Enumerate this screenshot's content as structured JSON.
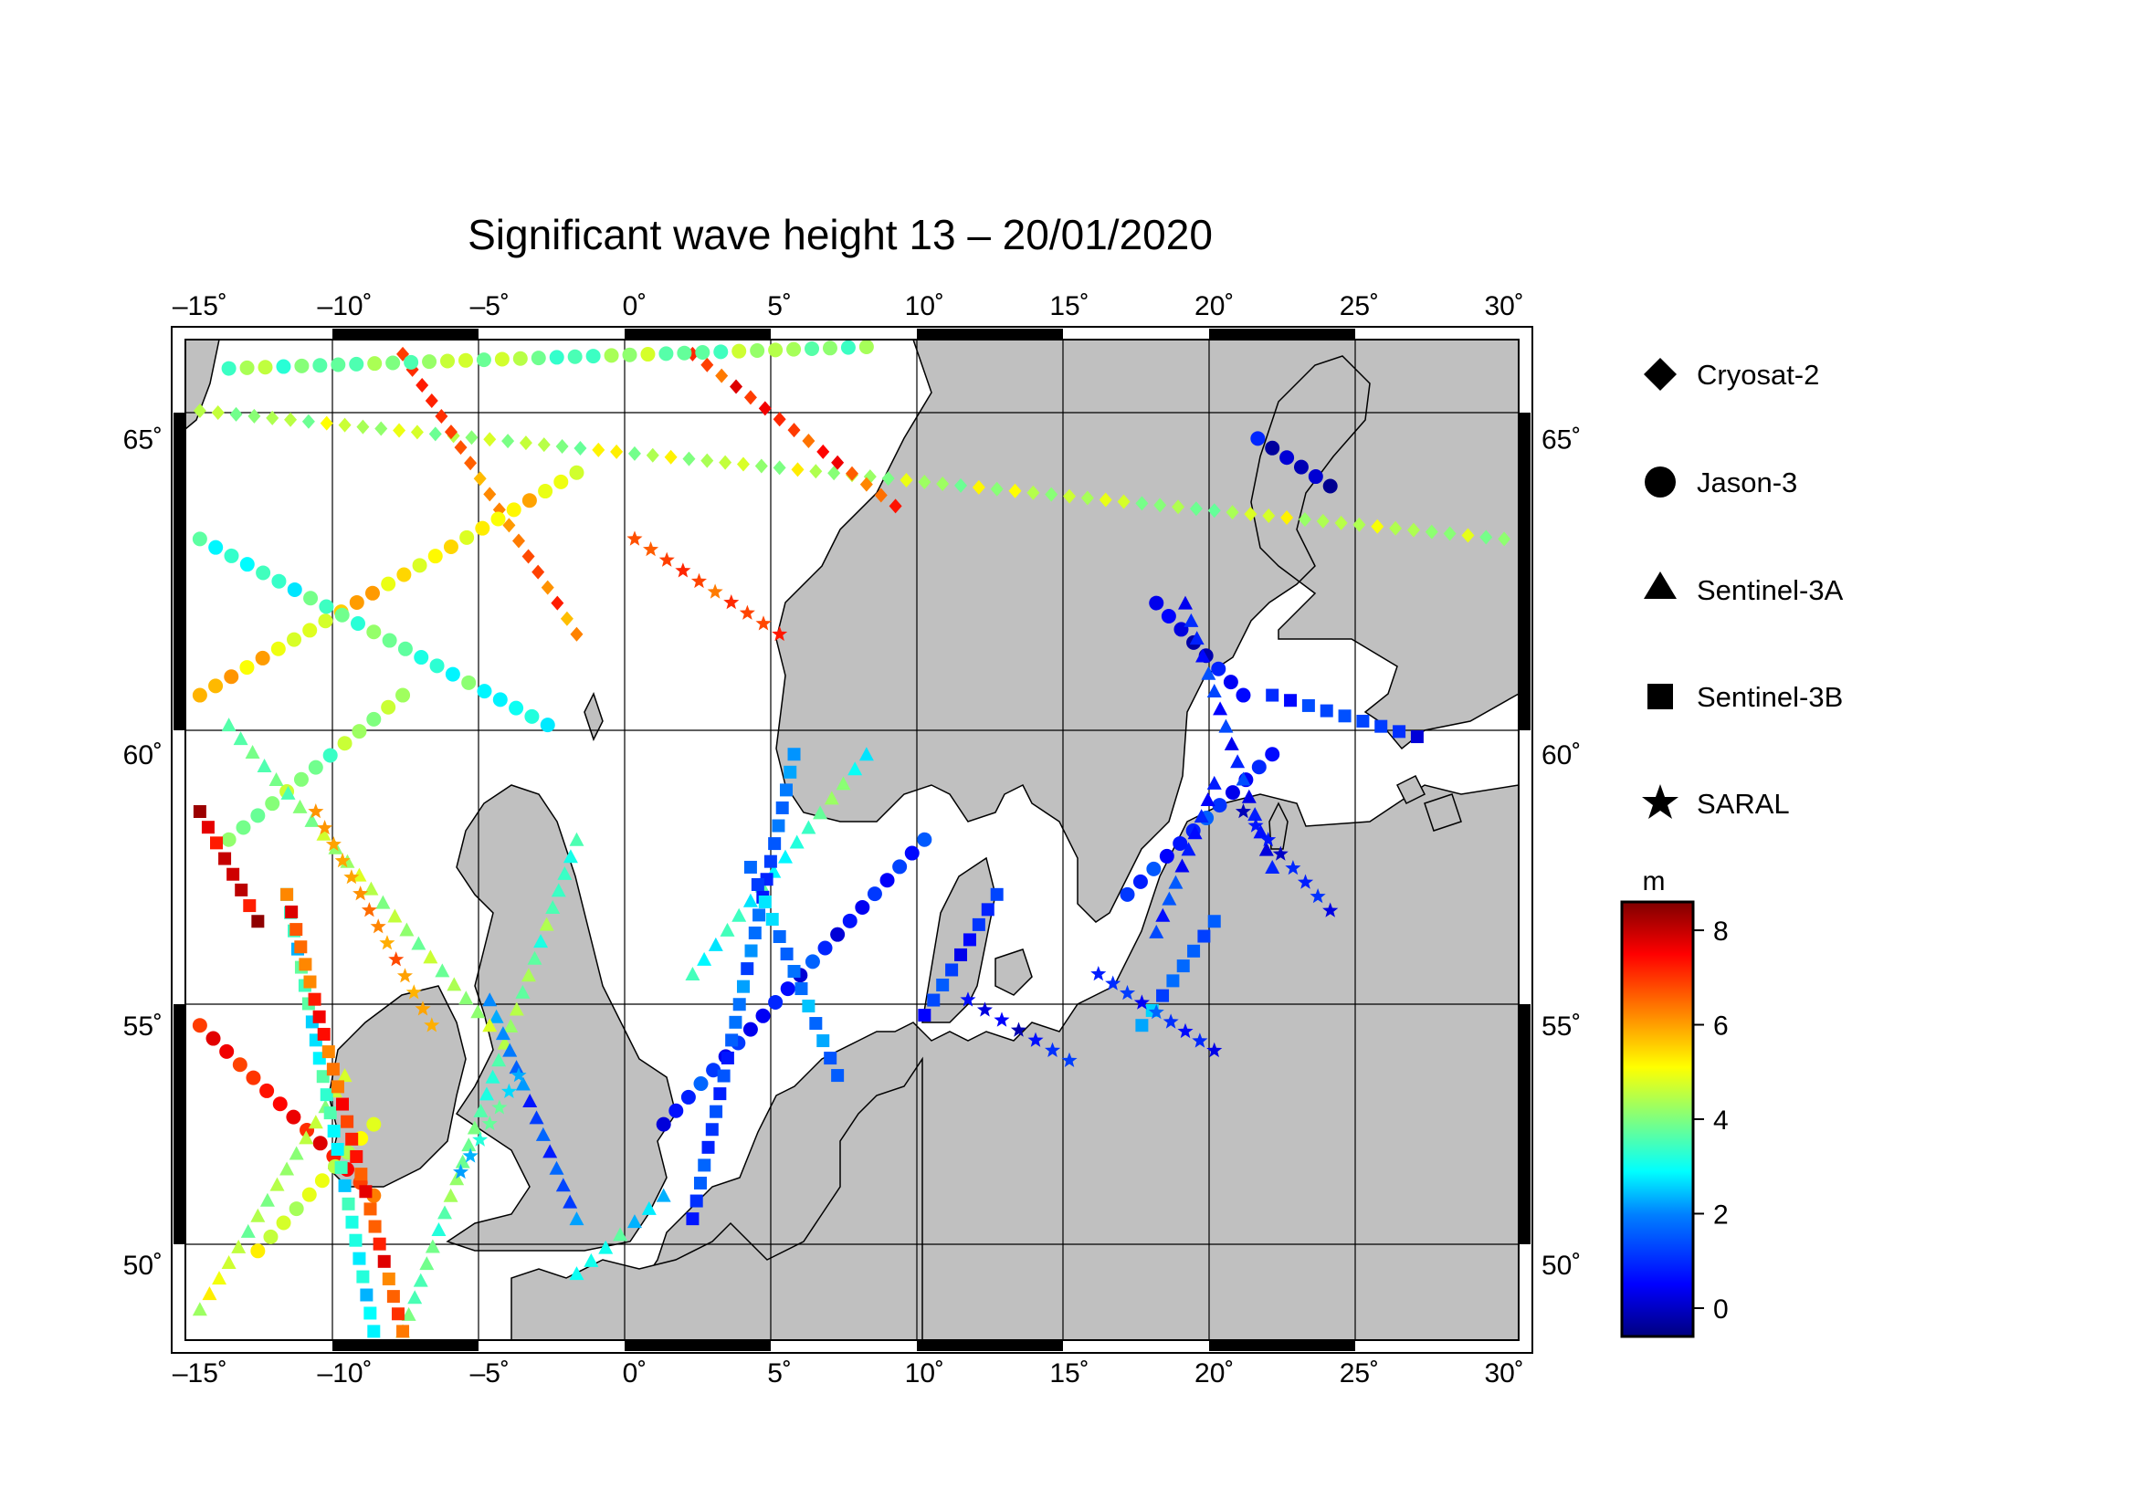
{
  "title": "Significant wave height 13 – 20/01/2020",
  "map": {
    "lon_range": [
      -15.5,
      30.5
    ],
    "lat_range": [
      48.3,
      66.4
    ],
    "lon_ticks": [
      "–15˚",
      "–10˚",
      "–5˚",
      "0˚",
      "5˚",
      "10˚",
      "15˚",
      "20˚",
      "25˚",
      "30˚"
    ],
    "lat_ticks": [
      "65˚",
      "60˚",
      "55˚",
      "50˚"
    ],
    "land_color": "#c0c0c0",
    "sea_color": "#ffffff",
    "grid": true
  },
  "legend": {
    "items": [
      {
        "symbol": "diamond-icon",
        "label": "Cryosat-2"
      },
      {
        "symbol": "circle-icon",
        "label": "Jason-3"
      },
      {
        "symbol": "triangle-icon",
        "label": "Sentinel-3A"
      },
      {
        "symbol": "square-icon",
        "label": "Sentinel-3B"
      },
      {
        "symbol": "star-icon",
        "label": "SARAL"
      }
    ]
  },
  "colorbar": {
    "unit": "m",
    "min": -0.6,
    "max": 8.6,
    "ticks": [
      "8",
      "6",
      "4",
      "2",
      "0"
    ],
    "colors": [
      "#00007f",
      "#0000ff",
      "#007fff",
      "#00ffff",
      "#7fff7f",
      "#ffff00",
      "#ff7f00",
      "#ff0000",
      "#7f0000"
    ]
  },
  "chart_data": {
    "type": "scatter",
    "xlabel": "",
    "ylabel": "",
    "series": [
      {
        "name": "Cryosat-2",
        "marker": "diamond",
        "tracks": [
          [
            [
              -15,
              65.4
            ],
            [
              30,
              63.5
            ]
          ],
          [
            [
              -8,
              66.2
            ],
            [
              -2,
              62.0
            ]
          ],
          [
            [
              2,
              66.2
            ],
            [
              9,
              64.0
            ]
          ]
        ],
        "hs": [
          4.5,
          6.5,
          7.0
        ]
      },
      {
        "name": "Jason-3",
        "marker": "circle",
        "tracks": [
          [
            [
              -15,
              61.0
            ],
            [
              -2,
              64.5
            ]
          ],
          [
            [
              -15,
              63.5
            ],
            [
              -3,
              60.5
            ]
          ],
          [
            [
              -14,
              58.5
            ],
            [
              -8,
              61.0
            ]
          ],
          [
            [
              -15,
              55.0
            ],
            [
              -9,
              51.5
            ]
          ],
          [
            [
              -13,
              50.3
            ],
            [
              -9,
              53.0
            ]
          ],
          [
            [
              1,
              53.0
            ],
            [
              10,
              58.5
            ]
          ],
          [
            [
              17,
              57.5
            ],
            [
              22,
              60.0
            ]
          ],
          [
            [
              18,
              62.5
            ],
            [
              21,
              61.0
            ]
          ],
          [
            [
              21.5,
              65.0
            ],
            [
              24,
              64.3
            ]
          ],
          [
            [
              -14,
              66.0
            ],
            [
              8,
              66.3
            ]
          ]
        ],
        "hs": [
          5.5,
          3.5,
          4.0,
          7.0,
          4.5,
          0.9,
          1.0,
          0.5,
          0.3,
          4.0
        ]
      },
      {
        "name": "Sentinel-3A",
        "marker": "triangle",
        "tracks": [
          [
            [
              -8,
              48.5
            ],
            [
              -2,
              58.5
            ]
          ],
          [
            [
              -15,
              49.0
            ],
            [
              -10,
              54.0
            ]
          ],
          [
            [
              2,
              56.0
            ],
            [
              8,
              60.0
            ]
          ],
          [
            [
              -5,
              55.5
            ],
            [
              -2,
              51.0
            ]
          ],
          [
            [
              18,
              56.8
            ],
            [
              20,
              59.5
            ]
          ],
          [
            [
              -2,
              49.8
            ],
            [
              1,
              51.5
            ]
          ],
          [
            [
              -14,
              60.5
            ],
            [
              -5,
              55.0
            ]
          ],
          [
            [
              19,
              62.5
            ],
            [
              22,
              58.0
            ]
          ]
        ],
        "hs": [
          3.8,
          4.5,
          3.5,
          1.5,
          1.2,
          3.0,
          4.2,
          1.0
        ]
      },
      {
        "name": "Sentinel-3B",
        "marker": "square",
        "tracks": [
          [
            [
              -15,
              59.0
            ],
            [
              -13,
              57.0
            ]
          ],
          [
            [
              -12,
              57.5
            ],
            [
              -9,
              48.5
            ]
          ],
          [
            [
              -8,
              48.5
            ],
            [
              -12,
              57.5
            ]
          ],
          [
            [
              2,
              51.0
            ],
            [
              5.5,
              60.0
            ]
          ],
          [
            [
              7,
              54.0
            ],
            [
              4,
              58.0
            ]
          ],
          [
            [
              10,
              55.2
            ],
            [
              12.5,
              57.5
            ]
          ],
          [
            [
              22,
              61.0
            ],
            [
              27,
              60.3
            ]
          ],
          [
            [
              17.5,
              55.0
            ],
            [
              20,
              57.0
            ]
          ]
        ],
        "hs": [
          8.0,
          3.0,
          7.0,
          1.5,
          2.0,
          0.8,
          0.9,
          1.8
        ]
      },
      {
        "name": "SARAL",
        "marker": "star",
        "tracks": [
          [
            [
              -11,
              59.0
            ],
            [
              -7,
              55.0
            ]
          ],
          [
            [
              11.5,
              55.5
            ],
            [
              15,
              54.3
            ]
          ],
          [
            [
              16,
              56.0
            ],
            [
              20,
              54.5
            ]
          ],
          [
            [
              21,
              59.0
            ],
            [
              24,
              57.2
            ]
          ],
          [
            [
              0,
              63.5
            ],
            [
              5,
              62.0
            ]
          ],
          [
            [
              -6,
              52.0
            ],
            [
              -4,
              54.0
            ]
          ]
        ],
        "hs": [
          6.5,
          0.5,
          1.0,
          0.5,
          6.5,
          3.0
        ]
      }
    ]
  }
}
